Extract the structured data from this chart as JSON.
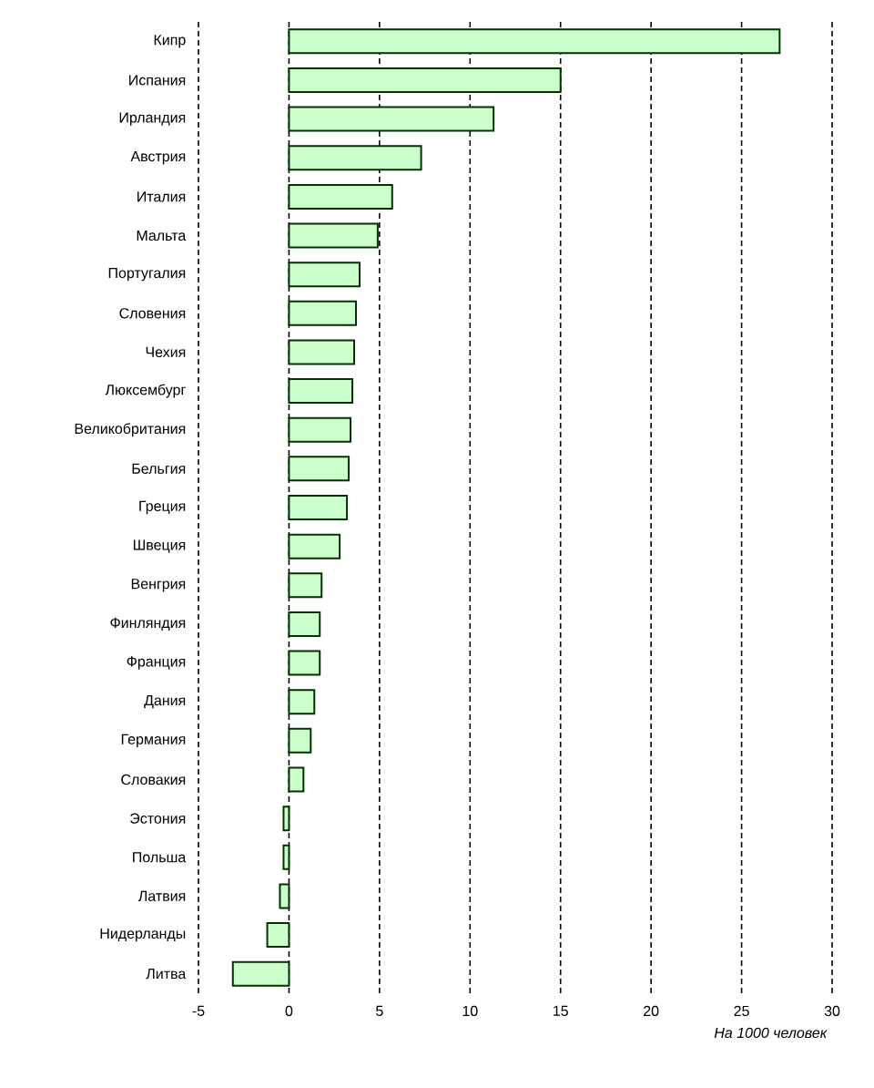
{
  "chart_data": {
    "type": "bar",
    "orientation": "horizontal",
    "xlabel": "На 1000 человек",
    "categories": [
      "Кипр",
      "Испания",
      "Ирландия",
      "Австрия",
      "Италия",
      "Мальта",
      "Португалия",
      "Словения",
      "Чехия",
      "Люксембург",
      "Великобритания",
      "Бельгия",
      "Греция",
      "Швеция",
      "Венгрия",
      "Финляндия",
      "Франция",
      "Дания",
      "Германия",
      "Словакия",
      "Эстония",
      "Польша",
      "Латвия",
      "Нидерланды",
      "Литва"
    ],
    "values": [
      27.1,
      15.0,
      11.3,
      7.3,
      5.7,
      4.9,
      3.9,
      3.7,
      3.6,
      3.5,
      3.4,
      3.3,
      3.2,
      2.8,
      1.8,
      1.7,
      1.7,
      1.4,
      1.2,
      0.8,
      -0.3,
      -0.3,
      -0.5,
      -1.2,
      -3.1
    ],
    "color": "#ccffcc",
    "xlim": [
      -5,
      30
    ],
    "xticks": [
      -5,
      0,
      5,
      10,
      15,
      20,
      25,
      30
    ],
    "grid": "x"
  }
}
